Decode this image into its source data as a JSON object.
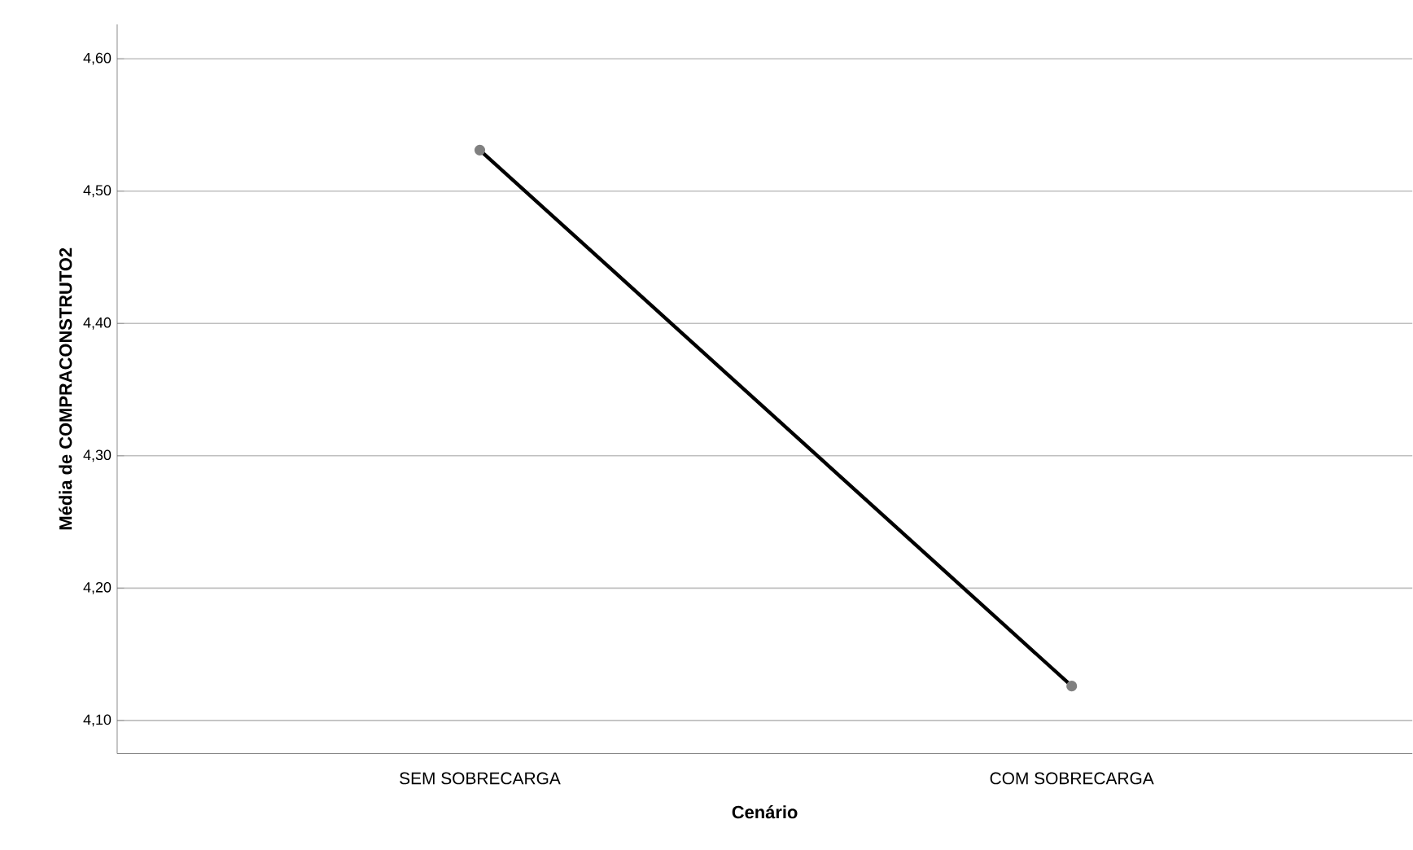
{
  "chart_data": {
    "type": "line",
    "xlabel": "Cenário",
    "ylabel": "Média de COMPRACONSTRUTO2",
    "categories": [
      "SEM SOBRECARGA",
      "COM SOBRECARGA"
    ],
    "series": [
      {
        "color": "#000000",
        "values": [
          4.531,
          4.126
        ]
      }
    ],
    "ylim": [
      4.075,
      4.626
    ],
    "yticks": [
      {
        "value": 4.1,
        "label": "4,10"
      },
      {
        "value": 4.2,
        "label": "4,20"
      },
      {
        "value": 4.3,
        "label": "4,30"
      },
      {
        "value": 4.4,
        "label": "4,40"
      },
      {
        "value": 4.5,
        "label": "4,50"
      },
      {
        "value": 4.6,
        "label": "4,60"
      }
    ],
    "grid": "y",
    "marker": "circle",
    "line_style": "solid"
  }
}
